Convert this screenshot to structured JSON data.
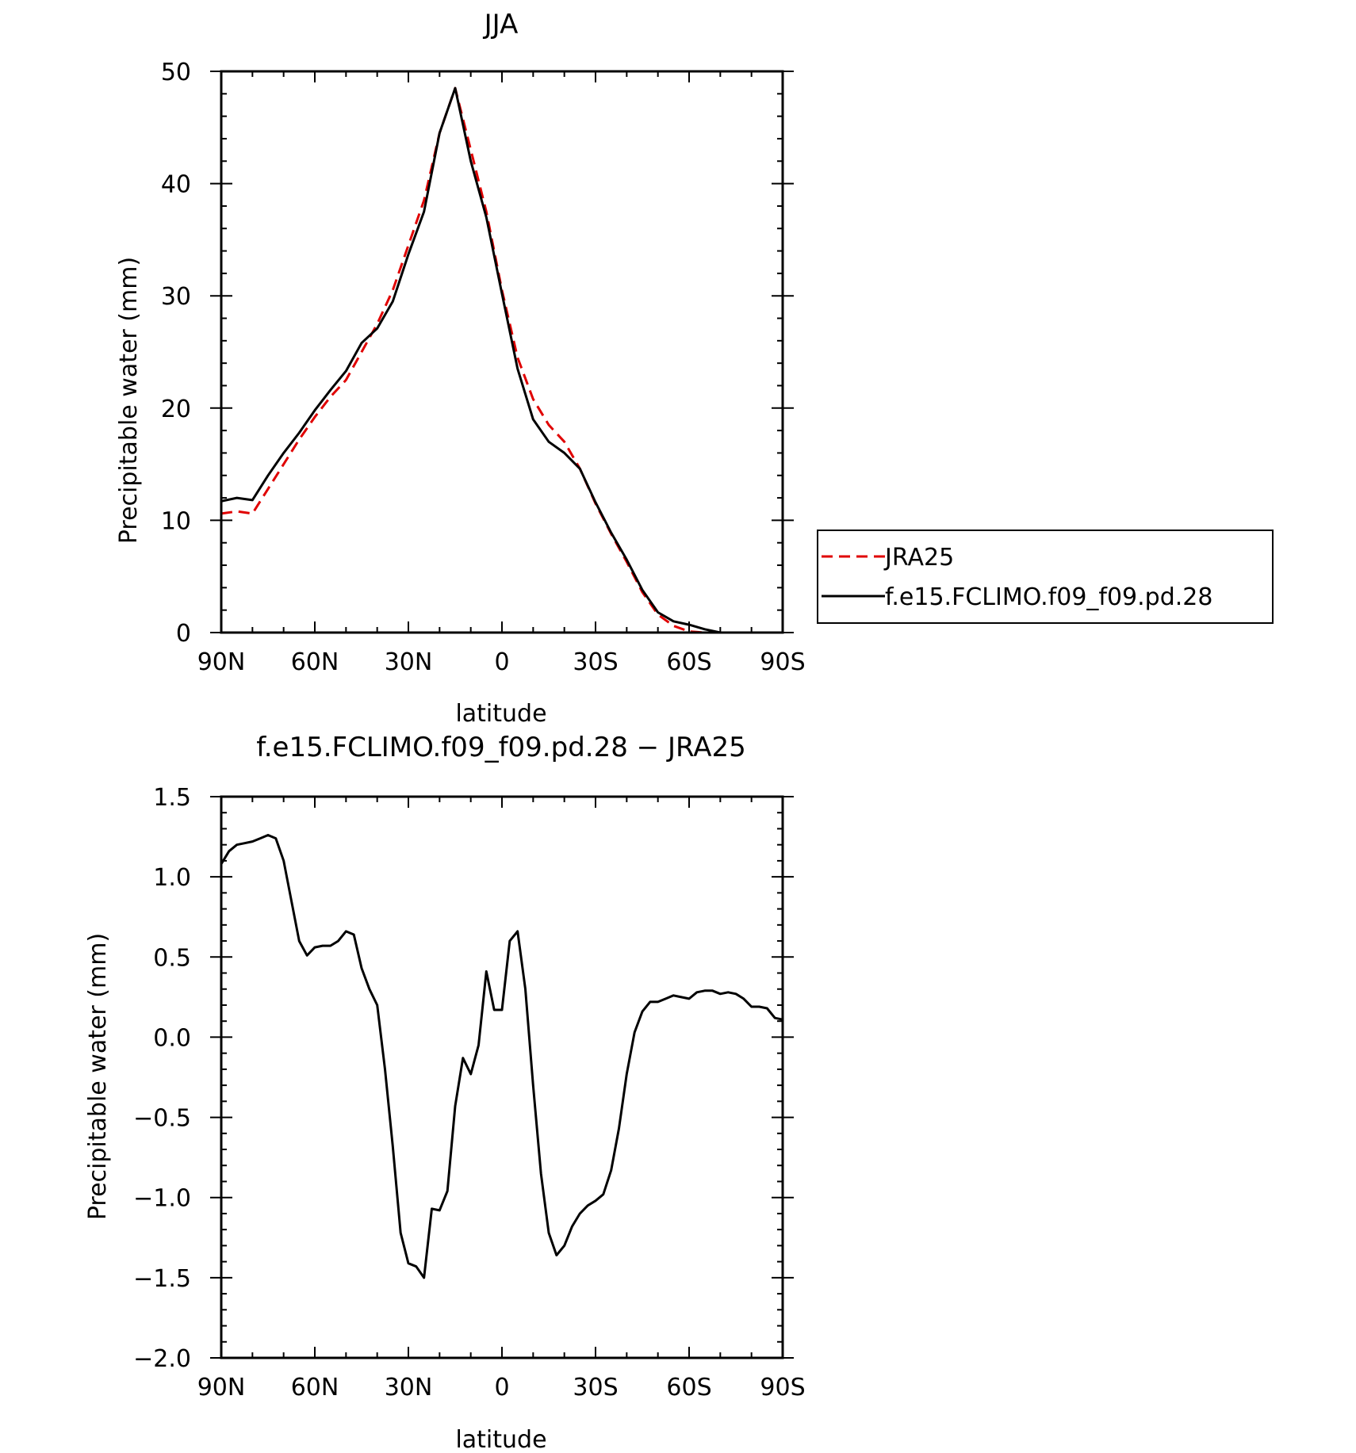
{
  "chart_data": [
    {
      "type": "line",
      "title": "JJA",
      "xlabel": "latitude",
      "ylabel": "Precipitable water (mm)",
      "xlim": [
        90,
        -90
      ],
      "ylim": [
        0,
        50
      ],
      "x_ticks": [
        90,
        60,
        30,
        0,
        -30,
        -60,
        -90
      ],
      "x_tick_labels": [
        "90N",
        "60N",
        "30N",
        "0",
        "30S",
        "60S",
        "90S"
      ],
      "y_ticks": [
        0,
        10,
        20,
        30,
        40,
        50
      ],
      "y_tick_labels": [
        "0",
        "10",
        "20",
        "30",
        "40",
        "50"
      ],
      "grid": false,
      "legend_position": "right",
      "series": [
        {
          "name": "JRA25",
          "color": "#e00000",
          "dash": "dashed",
          "x": [
            90,
            85,
            80,
            75,
            70,
            65,
            60,
            55,
            50,
            45,
            40,
            35,
            30,
            25,
            20,
            15,
            10,
            5,
            0,
            -5,
            -10,
            -15,
            -20,
            -25,
            -30,
            -35,
            -40,
            -45,
            -50,
            -55,
            -60,
            -65,
            -70,
            -75,
            -80,
            -85,
            -90
          ],
          "values": [
            10.6,
            10.8,
            10.6,
            12.8,
            15.0,
            17.2,
            19.2,
            21.0,
            22.5,
            25.0,
            27.5,
            30.5,
            34.5,
            38.5,
            44.5,
            48.5,
            43.0,
            37.5,
            30.5,
            24.5,
            20.8,
            18.5,
            17.0,
            14.6,
            11.5,
            8.8,
            6.3,
            3.6,
            1.6,
            0.6,
            0.1,
            0.0,
            0.0,
            0.0,
            0.0,
            0.0,
            0.0
          ]
        },
        {
          "name": "f.e15.FCLIMO.f09_f09.pd.28",
          "color": "#000000",
          "dash": "solid",
          "x": [
            90,
            85,
            80,
            75,
            70,
            65,
            60,
            55,
            50,
            45,
            40,
            35,
            30,
            25,
            20,
            15,
            10,
            5,
            0,
            -5,
            -10,
            -15,
            -20,
            -25,
            -30,
            -35,
            -40,
            -45,
            -50,
            -55,
            -60,
            -65,
            -70,
            -75,
            -80,
            -85,
            -90
          ],
          "values": [
            11.7,
            12.0,
            11.8,
            14.0,
            16.0,
            17.8,
            19.8,
            21.6,
            23.3,
            25.8,
            27.1,
            29.5,
            33.7,
            37.5,
            44.5,
            48.5,
            42.0,
            37.0,
            30.2,
            23.5,
            19.0,
            17.0,
            16.0,
            14.6,
            11.6,
            8.9,
            6.5,
            3.8,
            1.8,
            1.0,
            0.7,
            0.3,
            0.0,
            0.0,
            0.0,
            0.0,
            0.0
          ]
        }
      ]
    },
    {
      "type": "line",
      "title": "f.e15.FCLIMO.f09_f09.pd.28 − JRA25",
      "xlabel": "latitude",
      "ylabel": "Precipitable water (mm)",
      "xlim": [
        90,
        -90
      ],
      "ylim": [
        -2.0,
        1.5
      ],
      "x_ticks": [
        90,
        60,
        30,
        0,
        -30,
        -60,
        -90
      ],
      "x_tick_labels": [
        "90N",
        "60N",
        "30N",
        "0",
        "30S",
        "60S",
        "90S"
      ],
      "y_ticks": [
        -2.0,
        -1.5,
        -1.0,
        -0.5,
        0.0,
        0.5,
        1.0,
        1.5
      ],
      "y_tick_labels": [
        "−2.0",
        "−1.5",
        "−1.0",
        "−0.5",
        "0.0",
        "0.5",
        "1.0",
        "1.5"
      ],
      "grid": false,
      "series": [
        {
          "color": "#000000",
          "dash": "solid",
          "x": [
            90,
            87.5,
            85,
            82.5,
            80,
            77.5,
            75,
            72.5,
            70,
            67.5,
            65,
            62.5,
            60,
            57.5,
            55,
            52.5,
            50,
            47.5,
            45,
            42.5,
            40,
            37.5,
            35,
            32.5,
            30,
            27.5,
            25,
            22.5,
            20,
            17.5,
            15,
            12.5,
            10,
            7.5,
            5,
            2.5,
            0,
            -2.5,
            -5,
            -7.5,
            -10,
            -12.5,
            -15,
            -17.5,
            -20,
            -22.5,
            -25,
            -27.5,
            -30,
            -32.5,
            -35,
            -37.5,
            -40,
            -42.5,
            -45,
            -47.5,
            -50,
            -52.5,
            -55,
            -57.5,
            -60,
            -62.5,
            -65,
            -67.5,
            -70,
            -72.5,
            -75,
            -77.5,
            -80,
            -82.5,
            -85,
            -87.5,
            -90
          ],
          "values": [
            1.08,
            1.16,
            1.2,
            1.21,
            1.22,
            1.24,
            1.26,
            1.24,
            1.1,
            0.85,
            0.6,
            0.51,
            0.56,
            0.57,
            0.57,
            0.6,
            0.66,
            0.64,
            0.43,
            0.3,
            0.2,
            -0.2,
            -0.68,
            -1.22,
            -1.41,
            -1.43,
            -1.5,
            -1.07,
            -1.08,
            -0.96,
            -0.43,
            -0.13,
            -0.23,
            -0.05,
            0.41,
            0.17,
            0.17,
            0.6,
            0.66,
            0.3,
            -0.3,
            -0.85,
            -1.22,
            -1.36,
            -1.3,
            -1.18,
            -1.1,
            -1.05,
            -1.02,
            -0.98,
            -0.83,
            -0.57,
            -0.23,
            0.03,
            0.16,
            0.22,
            0.22,
            0.24,
            0.26,
            0.25,
            0.24,
            0.28,
            0.29,
            0.29,
            0.27,
            0.28,
            0.27,
            0.24,
            0.19,
            0.19,
            0.18,
            0.12,
            0.11
          ]
        }
      ]
    }
  ]
}
